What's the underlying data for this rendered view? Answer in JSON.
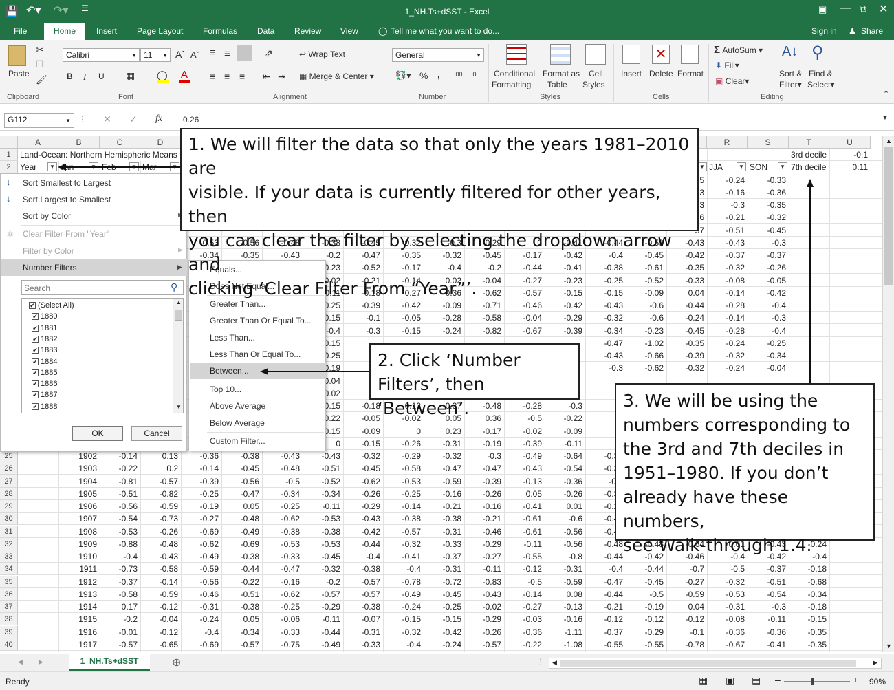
{
  "window": {
    "title": "1_NH.Ts+dSST - Excel"
  },
  "tabs": [
    "File",
    "Home",
    "Insert",
    "Page Layout",
    "Formulas",
    "Data",
    "Review",
    "View"
  ],
  "tell_me": "Tell me what you want to do...",
  "account": {
    "sign_in": "Sign in",
    "share": "Share"
  },
  "ribbon": {
    "clipboard": {
      "paste": "Paste",
      "label": "Clipboard"
    },
    "font": {
      "name": "Calibri",
      "size": "11",
      "label": "Font",
      "bold": "B",
      "italic": "I",
      "underline": "U"
    },
    "alignment": {
      "wrap": "Wrap Text",
      "merge": "Merge & Center",
      "label": "Alignment"
    },
    "number": {
      "format": "General",
      "label": "Number"
    },
    "styles": {
      "conditional1": "Conditional",
      "conditional2": "Formatting",
      "format_table1": "Format as",
      "format_table2": "Table",
      "cell_styles1": "Cell",
      "cell_styles2": "Styles",
      "label": "Styles"
    },
    "cells": {
      "insert": "Insert",
      "delete": "Delete",
      "format": "Format",
      "label": "Cells"
    },
    "editing": {
      "autosum": "AutoSum",
      "fill": "Fill",
      "clear": "Clear",
      "sort1": "Sort &",
      "sort2": "Filter",
      "find1": "Find &",
      "find2": "Select",
      "label": "Editing"
    }
  },
  "formula_bar": {
    "name_box": "G112",
    "formula": "0.26"
  },
  "sheet": {
    "columns": [
      "A",
      "B",
      "C",
      "D",
      "E",
      "F",
      "G",
      "H",
      "I",
      "J",
      "K",
      "L",
      "M",
      "N",
      "O",
      "P",
      "Q",
      "R",
      "S",
      "T",
      "U"
    ],
    "row1_title": "Land-Ocean: Northern Hemispheric Means",
    "row2": {
      "a": "Year",
      "b": "Jan",
      "c": "Feb",
      "d": "Mar",
      "r": "JJA",
      "s": "SON"
    },
    "t1": "3rd decile",
    "u1": "-0.1",
    "t2": "7th decile",
    "u2": "0.11",
    "right_rows": [
      {
        "q": "25",
        "r": "-0.24",
        "s": "-0.33"
      },
      {
        "q": "03",
        "r": "-0.16",
        "s": "-0.36"
      },
      {
        "q": "23",
        "r": "-0.3",
        "s": "-0.35"
      },
      {
        "q": "26",
        "r": "-0.21",
        "s": "-0.32"
      },
      {
        "q": "57",
        "r": "-0.51",
        "s": "-0.45"
      }
    ],
    "partial_rows": [
      [
        "-0.53",
        "-0.56",
        "-0.48",
        "-0.38",
        "-0.45",
        "-0.32",
        "-0.3",
        "-0.29",
        "0",
        "-0.41",
        "-0.44",
        "-0.59",
        "-0.43",
        "-0.43",
        "-0.3"
      ],
      [
        "-0.34",
        "-0.35",
        "-0.43",
        "-0.2",
        "-0.47",
        "-0.35",
        "-0.32",
        "-0.45",
        "-0.17",
        "-0.42",
        "-0.4",
        "-0.45",
        "-0.42",
        "-0.37",
        "-0.37"
      ]
    ],
    "mid_rows": [
      [
        "0.23",
        "-0.52",
        "-0.17",
        "-0.4",
        "-0.2",
        "-0.44",
        "-0.41",
        "-0.38",
        "-0.61",
        "-0.35",
        "-0.32",
        "-0.26"
      ],
      [
        "0.02",
        "-0.21",
        "-0.14",
        "0.02",
        "-0.04",
        "-0.27",
        "-0.23",
        "-0.25",
        "-0.52",
        "-0.33",
        "-0.08",
        "-0.05"
      ],
      [
        "0.11",
        "-0.18",
        "-0.27",
        "-0.36",
        "-0.62",
        "-0.57",
        "-0.15",
        "-0.15",
        "-0.09",
        "0.04",
        "-0.14",
        "-0.42"
      ],
      [
        "0.25",
        "-0.39",
        "-0.42",
        "-0.09",
        "-0.71",
        "-0.46",
        "-0.42",
        "-0.43",
        "-0.6",
        "-0.44",
        "-0.28",
        "-0.4"
      ],
      [
        "0.15",
        "-0.1",
        "-0.05",
        "-0.28",
        "-0.58",
        "-0.04",
        "-0.29",
        "-0.32",
        "-0.6",
        "-0.24",
        "-0.14",
        "-0.3"
      ],
      [
        "-0.4",
        "-0.3",
        "-0.15",
        "-0.24",
        "-0.82",
        "-0.67",
        "-0.39",
        "-0.34",
        "-0.23",
        "-0.45",
        "-0.28",
        "-0.4"
      ],
      [
        "0.15",
        "",
        "",
        "",
        "",
        "",
        "",
        "-0.47",
        "-1.02",
        "-0.35",
        "-0.24",
        "-0.25"
      ],
      [
        "0.25",
        "",
        "",
        "",
        "",
        "",
        "",
        "-0.43",
        "-0.66",
        "-0.39",
        "-0.32",
        "-0.34"
      ],
      [
        "0.19",
        "",
        "",
        "",
        "",
        "",
        "",
        "-0.3",
        "-0.62",
        "-0.32",
        "-0.24",
        "-0.04"
      ],
      [
        "0.04",
        "",
        "",
        "",
        "",
        "",
        "",
        "",
        "",
        "",
        "",
        ""
      ],
      [
        "0.02",
        "",
        "",
        "",
        "",
        "",
        "",
        "",
        "",
        "",
        "",
        ""
      ],
      [
        "0.15",
        "-0.18",
        "-0.12",
        "-0.37",
        "-0.48",
        "-0.28",
        "-0.3",
        "",
        "",
        "",
        "",
        ""
      ],
      [
        "0.22",
        "-0.05",
        "-0.02",
        "0.05",
        "0.36",
        "-0.5",
        "-0.22",
        "",
        "",
        "",
        "",
        ""
      ],
      [
        "0.15",
        "-0.09",
        "0",
        "0.23",
        "-0.17",
        "-0.02",
        "-0.09",
        "",
        "",
        "",
        "",
        ""
      ],
      [
        "0",
        "-0.15",
        "-0.26",
        "-0.31",
        "-0.19",
        "-0.39",
        "-0.11",
        "",
        "",
        "",
        "",
        ""
      ]
    ],
    "rows": [
      {
        "n": "25",
        "y": "1902",
        "v": [
          "-0.14",
          "0.13",
          "-0.36",
          "-0.38",
          "-0.43",
          "-0.43",
          "-0.32",
          "-0.29",
          "-0.32",
          "-0.3",
          "-0.49",
          "-0.64",
          "-0.33",
          "",
          "",
          "",
          "",
          ""
        ]
      },
      {
        "n": "26",
        "y": "1903",
        "v": [
          "-0.22",
          "0.2",
          "-0.14",
          "-0.45",
          "-0.48",
          "-0.51",
          "-0.45",
          "-0.58",
          "-0.47",
          "-0.47",
          "-0.43",
          "-0.54",
          "-0.38",
          "",
          "",
          "",
          "",
          ""
        ]
      },
      {
        "n": "27",
        "y": "1904",
        "v": [
          "-0.81",
          "-0.57",
          "-0.39",
          "-0.56",
          "-0.5",
          "-0.52",
          "-0.62",
          "-0.53",
          "-0.59",
          "-0.39",
          "-0.13",
          "-0.36",
          "-0.5",
          "",
          "",
          "",
          "",
          ""
        ]
      },
      {
        "n": "28",
        "y": "1905",
        "v": [
          "-0.51",
          "-0.82",
          "-0.25",
          "-0.47",
          "-0.34",
          "-0.34",
          "-0.26",
          "-0.25",
          "-0.16",
          "-0.26",
          "0.05",
          "-0.26",
          "-0.32",
          "",
          "",
          "",
          "",
          ""
        ]
      },
      {
        "n": "29",
        "y": "1906",
        "v": [
          "-0.56",
          "-0.59",
          "-0.19",
          "0.05",
          "-0.25",
          "-0.11",
          "-0.29",
          "-0.14",
          "-0.21",
          "-0.16",
          "-0.41",
          "0.01",
          "-0.24",
          "",
          "",
          "",
          "",
          ""
        ]
      },
      {
        "n": "30",
        "y": "1907",
        "v": [
          "-0.54",
          "-0.73",
          "-0.27",
          "-0.48",
          "-0.62",
          "-0.53",
          "-0.43",
          "-0.38",
          "-0.38",
          "-0.21",
          "-0.61",
          "-0.6",
          "-0.48",
          "",
          "",
          "",
          "",
          ""
        ]
      },
      {
        "n": "31",
        "y": "1908",
        "v": [
          "-0.53",
          "-0.26",
          "-0.69",
          "-0.49",
          "-0.38",
          "-0.38",
          "-0.42",
          "-0.57",
          "-0.31",
          "-0.46",
          "-0.61",
          "-0.56",
          "-0.47",
          "",
          "",
          "",
          "",
          ""
        ]
      },
      {
        "n": "32",
        "y": "1909",
        "v": [
          "-0.88",
          "-0.48",
          "-0.62",
          "-0.69",
          "-0.53",
          "-0.53",
          "-0.44",
          "-0.32",
          "-0.33",
          "-0.29",
          "-0.11",
          "-0.56",
          "-0.48",
          "-0.48",
          "-0.64",
          "-0.61",
          "-0.43",
          "-0.24"
        ]
      },
      {
        "n": "33",
        "y": "1910",
        "v": [
          "-0.4",
          "-0.43",
          "-0.49",
          "-0.38",
          "-0.33",
          "-0.45",
          "-0.4",
          "-0.41",
          "-0.37",
          "-0.27",
          "-0.55",
          "-0.8",
          "-0.44",
          "-0.42",
          "-0.46",
          "-0.4",
          "-0.42",
          "-0.4"
        ]
      },
      {
        "n": "34",
        "y": "1911",
        "v": [
          "-0.73",
          "-0.58",
          "-0.59",
          "-0.44",
          "-0.47",
          "-0.32",
          "-0.38",
          "-0.4",
          "-0.31",
          "-0.11",
          "-0.12",
          "-0.31",
          "-0.4",
          "-0.44",
          "-0.7",
          "-0.5",
          "-0.37",
          "-0.18"
        ]
      },
      {
        "n": "35",
        "y": "1912",
        "v": [
          "-0.37",
          "-0.14",
          "-0.56",
          "-0.22",
          "-0.16",
          "-0.2",
          "-0.57",
          "-0.78",
          "-0.72",
          "-0.83",
          "-0.5",
          "-0.59",
          "-0.47",
          "-0.45",
          "-0.27",
          "-0.32",
          "-0.51",
          "-0.68"
        ]
      },
      {
        "n": "36",
        "y": "1913",
        "v": [
          "-0.58",
          "-0.59",
          "-0.46",
          "-0.51",
          "-0.62",
          "-0.57",
          "-0.57",
          "-0.49",
          "-0.45",
          "-0.43",
          "-0.14",
          "0.08",
          "-0.44",
          "-0.5",
          "-0.59",
          "-0.53",
          "-0.54",
          "-0.34"
        ]
      },
      {
        "n": "37",
        "y": "1914",
        "v": [
          "0.17",
          "-0.12",
          "-0.31",
          "-0.38",
          "-0.25",
          "-0.29",
          "-0.38",
          "-0.24",
          "-0.25",
          "-0.02",
          "-0.27",
          "-0.13",
          "-0.21",
          "-0.19",
          "0.04",
          "-0.31",
          "-0.3",
          "-0.18"
        ]
      },
      {
        "n": "38",
        "y": "1915",
        "v": [
          "-0.2",
          "-0.04",
          "-0.24",
          "0.05",
          "-0.06",
          "-0.11",
          "-0.07",
          "-0.15",
          "-0.15",
          "-0.29",
          "-0.03",
          "-0.16",
          "-0.12",
          "-0.12",
          "-0.12",
          "-0.08",
          "-0.11",
          "-0.15"
        ]
      },
      {
        "n": "39",
        "y": "1916",
        "v": [
          "-0.01",
          "-0.12",
          "-0.4",
          "-0.34",
          "-0.33",
          "-0.44",
          "-0.31",
          "-0.32",
          "-0.42",
          "-0.26",
          "-0.36",
          "-1.11",
          "-0.37",
          "-0.29",
          "-0.1",
          "-0.36",
          "-0.36",
          "-0.35"
        ]
      },
      {
        "n": "40",
        "y": "1917",
        "v": [
          "-0.57",
          "-0.65",
          "-0.69",
          "-0.57",
          "-0.75",
          "-0.49",
          "-0.33",
          "-0.4",
          "-0.24",
          "-0.57",
          "-0.22",
          "-1.08",
          "-0.55",
          "-0.55",
          "-0.78",
          "-0.67",
          "-0.41",
          "-0.35"
        ]
      }
    ]
  },
  "filter_menu": {
    "sort_asc": "Sort Smallest to Largest",
    "sort_desc": "Sort Largest to Smallest",
    "sort_color": "Sort by Color",
    "clear_filter": "Clear Filter From \"Year\"",
    "filter_color": "Filter by Color",
    "number_filters": "Number Filters",
    "search_placeholder": "Search",
    "list": [
      "(Select All)",
      "1880",
      "1881",
      "1882",
      "1883",
      "1884",
      "1885",
      "1886",
      "1887",
      "1888"
    ],
    "ok": "OK",
    "cancel": "Cancel"
  },
  "submenu": [
    "Equals...",
    "Does Not Equal...",
    "Greater Than...",
    "Greater Than Or Equal To...",
    "Less Than...",
    "Less Than Or Equal To...",
    "Between...",
    "Top 10...",
    "Above Average",
    "Below Average",
    "Custom Filter..."
  ],
  "annotations": {
    "a1": [
      "1. We will filter the data so that only the years 1981–2010 are",
      "visible. If your data is currently filtered for other years, then",
      "you can clear the filter by selecting the dropdown arrow and",
      "clicking ‘Clear Filter From “Year”’."
    ],
    "a2": [
      "2. Click ‘Number",
      "Filters’, then ‘Between’."
    ],
    "a3": [
      "3. We will be using the",
      "numbers corresponding to",
      "the 3rd and 7th deciles in",
      "1951–1980. If you don’t",
      "already have these numbers,",
      "see Walk-through 1.4."
    ]
  },
  "sheet_tab": "1_NH.Ts+dSST",
  "status": {
    "ready": "Ready",
    "zoom": "90%"
  }
}
